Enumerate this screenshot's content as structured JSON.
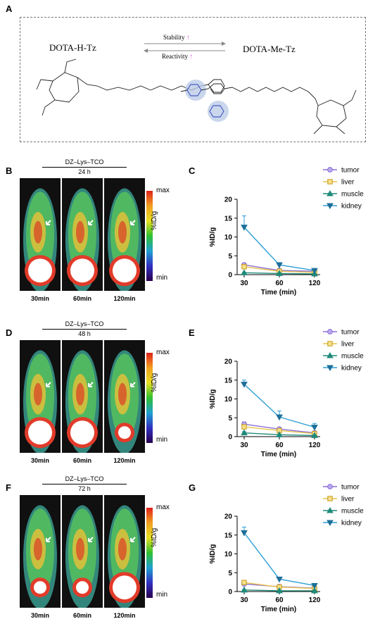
{
  "panels": {
    "A": "A",
    "B": "B",
    "C": "C",
    "D": "D",
    "E": "E",
    "F": "F",
    "G": "G"
  },
  "scheme": {
    "left_compound": "DOTA-H-Tz",
    "right_compound": "DOTA-Me-Tz",
    "forward_label": "Stability",
    "reverse_label": "Reactivity",
    "up_arrow": "↑"
  },
  "imaging": [
    {
      "probe": "DZ–Lys–TCO",
      "timepoint": "24 h",
      "cb_max": "max",
      "cb_min": "min",
      "cb_label": "%ID/g",
      "times": [
        "30min",
        "60min",
        "120min"
      ]
    },
    {
      "probe": "DZ–Lys–TCO",
      "timepoint": "48 h",
      "cb_max": "max",
      "cb_min": "min",
      "cb_label": "%ID/g",
      "times": [
        "30min",
        "60min",
        "120min"
      ]
    },
    {
      "probe": "DZ–Lys–TCO",
      "timepoint": "72 h",
      "cb_max": "max",
      "cb_min": "min",
      "cb_label": "%ID/g",
      "times": [
        "30min",
        "60min",
        "120min"
      ]
    }
  ],
  "chart_colors": {
    "tumor": "#8b6fd6",
    "liver": "#e8c44a",
    "muscle": "#1f8a7a",
    "kidney": "#2e9fd6"
  },
  "chart_data": [
    {
      "type": "line",
      "xlabel": "Time (min)",
      "ylabel": "%ID/g",
      "x": [
        30,
        60,
        120
      ],
      "ylim": [
        0,
        20
      ],
      "yticks": [
        0,
        5,
        10,
        15,
        20
      ],
      "legend_position": "top-right",
      "series": [
        {
          "name": "tumor",
          "values": [
            2.6,
            1.1,
            0.9
          ],
          "errors": [
            0.5,
            0.3,
            0.2
          ]
        },
        {
          "name": "liver",
          "values": [
            2.1,
            0.9,
            0.6
          ],
          "errors": [
            0.4,
            0.2,
            0.1
          ]
        },
        {
          "name": "muscle",
          "values": [
            0.5,
            0.3,
            0.2
          ],
          "errors": [
            0.1,
            0.1,
            0.1
          ]
        },
        {
          "name": "kidney",
          "values": [
            12.6,
            2.6,
            1.1
          ],
          "errors": [
            3.0,
            0.6,
            0.3
          ]
        }
      ]
    },
    {
      "type": "line",
      "xlabel": "Time (min)",
      "ylabel": "%ID/g",
      "x": [
        30,
        60,
        120
      ],
      "ylim": [
        0,
        20
      ],
      "yticks": [
        0,
        5,
        10,
        15,
        20
      ],
      "legend_position": "top-right",
      "series": [
        {
          "name": "tumor",
          "values": [
            3.3,
            2.0,
            1.0
          ],
          "errors": [
            0.6,
            0.4,
            0.3
          ]
        },
        {
          "name": "liver",
          "values": [
            2.6,
            1.6,
            0.8
          ],
          "errors": [
            0.4,
            0.3,
            0.2
          ]
        },
        {
          "name": "muscle",
          "values": [
            1.0,
            0.5,
            0.3
          ],
          "errors": [
            0.3,
            0.1,
            0.1
          ]
        },
        {
          "name": "kidney",
          "values": [
            13.9,
            5.2,
            2.5
          ],
          "errors": [
            1.1,
            1.6,
            1.0
          ]
        }
      ]
    },
    {
      "type": "line",
      "xlabel": "Time (min)",
      "ylabel": "%ID/g",
      "x": [
        30,
        60,
        120
      ],
      "ylim": [
        0,
        20
      ],
      "yticks": [
        0,
        5,
        10,
        15,
        20
      ],
      "legend_position": "top-right",
      "series": [
        {
          "name": "tumor",
          "values": [
            2.0,
            1.3,
            0.9
          ],
          "errors": [
            0.4,
            0.2,
            0.2
          ]
        },
        {
          "name": "liver",
          "values": [
            2.4,
            1.2,
            0.8
          ],
          "errors": [
            0.5,
            0.2,
            0.2
          ]
        },
        {
          "name": "muscle",
          "values": [
            0.4,
            0.2,
            0.2
          ],
          "errors": [
            0.1,
            0.1,
            0.1
          ]
        },
        {
          "name": "kidney",
          "values": [
            15.6,
            3.3,
            1.6
          ],
          "errors": [
            1.5,
            0.4,
            0.3
          ]
        }
      ]
    }
  ]
}
